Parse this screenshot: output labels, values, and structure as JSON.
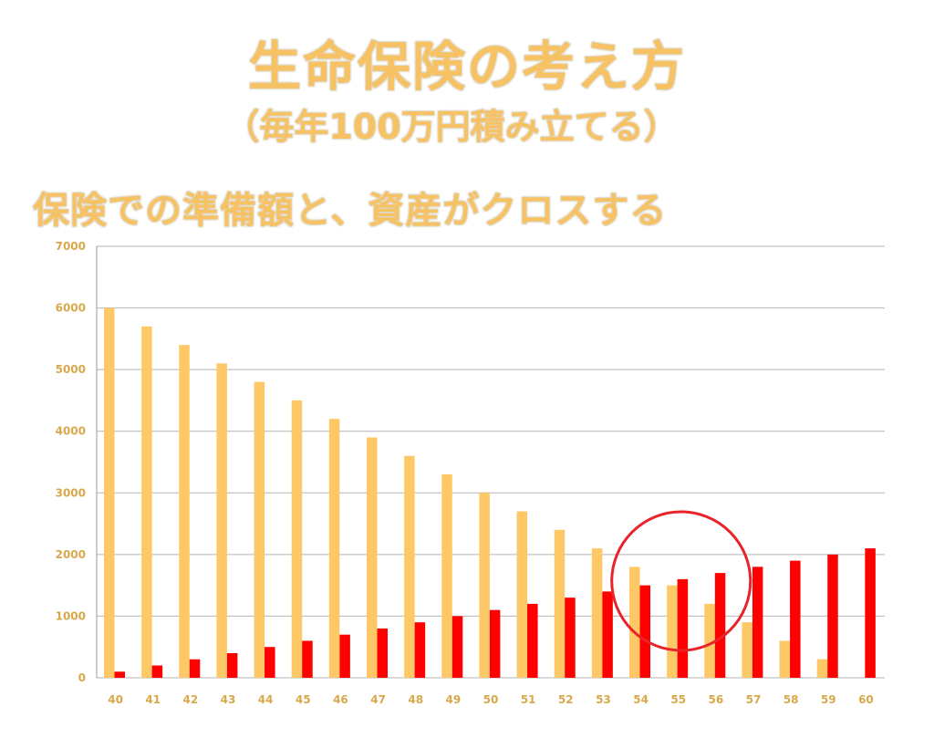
{
  "title": "生命保険の考え方",
  "subtitle": "（毎年100万円積み立てる）",
  "heading": "保険での準備額と、資産がクロスする",
  "colors": {
    "insurance": "#ffc866",
    "assets": "#ff0000",
    "circle": "#e8242a",
    "grid": "#b5b5b5",
    "tick": "#d8a84a"
  },
  "chart_data": {
    "type": "bar",
    "categories": [
      "40",
      "41",
      "42",
      "43",
      "44",
      "45",
      "46",
      "47",
      "48",
      "49",
      "50",
      "51",
      "52",
      "53",
      "54",
      "55",
      "56",
      "57",
      "58",
      "59",
      "60"
    ],
    "series": [
      {
        "values": [
          6000,
          5700,
          5400,
          5100,
          4800,
          4500,
          4200,
          3900,
          3600,
          3300,
          3000,
          2700,
          2400,
          2100,
          1800,
          1500,
          1200,
          900,
          600,
          300,
          0
        ]
      },
      {
        "values": [
          100,
          200,
          300,
          400,
          500,
          600,
          700,
          800,
          900,
          1000,
          1100,
          1200,
          1300,
          1400,
          1500,
          1600,
          1700,
          1800,
          1900,
          2000,
          2100
        ]
      }
    ],
    "yticks": [
      "0",
      "1000",
      "2000",
      "3000",
      "4000",
      "5000",
      "6000",
      "7000"
    ],
    "ylim": [
      0,
      7000
    ],
    "grid": true,
    "legend": "none",
    "annotation": {
      "type": "circle",
      "around_category": "55"
    }
  }
}
